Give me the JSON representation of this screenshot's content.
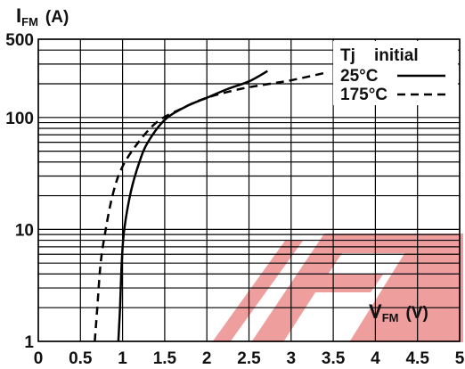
{
  "chart_data": {
    "type": "line",
    "ylabel": {
      "symbol": "I",
      "sub": "FM",
      "unit": "(A)"
    },
    "xlabel": {
      "symbol": "V",
      "sub": "FM",
      "unit": "(V)"
    },
    "xlim": [
      0,
      5
    ],
    "ylim": [
      1,
      500
    ],
    "yscale": "log",
    "grid": true,
    "x_ticks": [
      "0",
      "0.5",
      "1",
      "1.5",
      "2",
      "2.5",
      "3",
      "3.5",
      "4",
      "4.5",
      "5"
    ],
    "y_ticks": [
      "1",
      "10",
      "100",
      "500"
    ],
    "legend": {
      "title": "Tj    initial",
      "placement": "top-right"
    },
    "series": [
      {
        "name": "25°C",
        "style": "solid",
        "color": "#000000",
        "points": [
          [
            0.95,
            1
          ],
          [
            0.97,
            2
          ],
          [
            0.99,
            5
          ],
          [
            1.02,
            10
          ],
          [
            1.1,
            22
          ],
          [
            1.2,
            40
          ],
          [
            1.3,
            60
          ],
          [
            1.5,
            95
          ],
          [
            1.75,
            125
          ],
          [
            2.0,
            150
          ],
          [
            2.25,
            180
          ],
          [
            2.5,
            210
          ],
          [
            2.72,
            260
          ]
        ]
      },
      {
        "name": "175°C",
        "style": "dashed",
        "color": "#000000",
        "points": [
          [
            0.67,
            1
          ],
          [
            0.7,
            2
          ],
          [
            0.74,
            5
          ],
          [
            0.8,
            10
          ],
          [
            0.88,
            20
          ],
          [
            0.98,
            34
          ],
          [
            1.15,
            55
          ],
          [
            1.4,
            90
          ],
          [
            1.7,
            120
          ],
          [
            2.0,
            150
          ],
          [
            2.4,
            180
          ],
          [
            2.75,
            200
          ],
          [
            3.0,
            215
          ],
          [
            3.4,
            250
          ]
        ]
      }
    ]
  },
  "colors": {
    "watermark": "#e04040"
  },
  "watermark": "FER"
}
